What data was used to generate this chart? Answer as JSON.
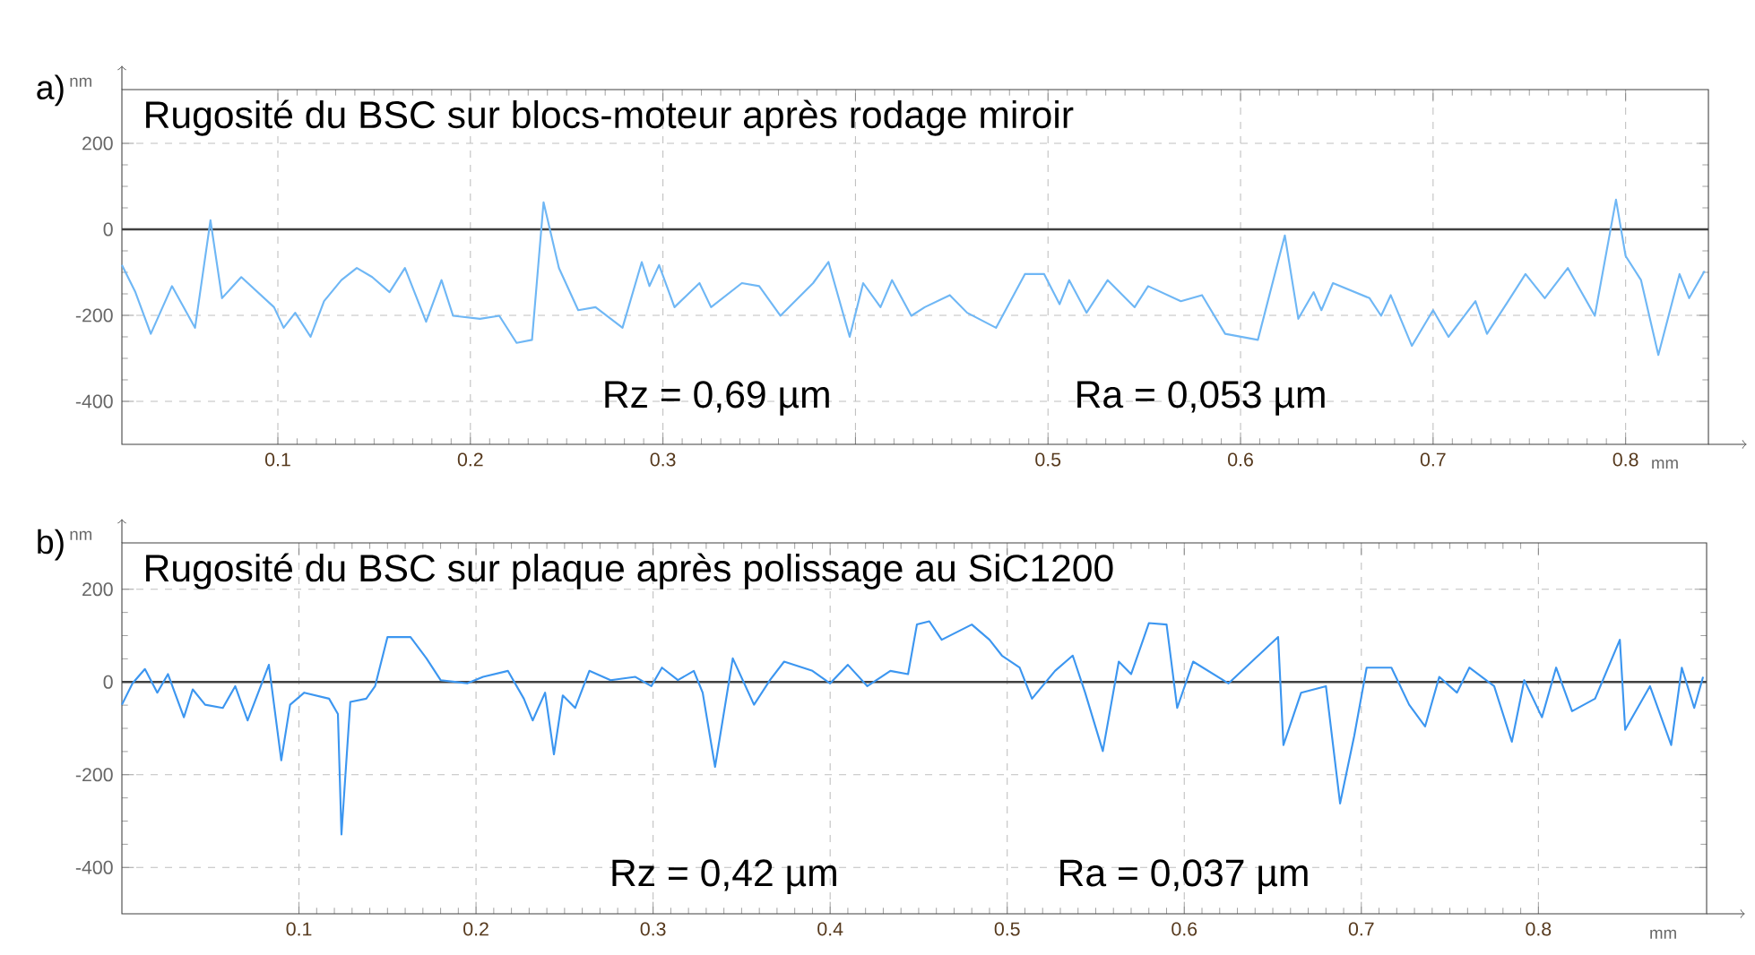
{
  "chart_data": [
    {
      "type": "line",
      "title": "Rugosité du BSC sur blocs-moteur après rodage miroir",
      "xlabel": "mm",
      "ylabel": "nm",
      "annotations": [
        "a)",
        "Rz = 0,69 µm",
        "Ra = 0,053 µm"
      ],
      "x": [
        0.019,
        0.026,
        0.034,
        0.045,
        0.057,
        0.065,
        0.071,
        0.081,
        0.098,
        0.103,
        0.109,
        0.117,
        0.124,
        0.133,
        0.141,
        0.149,
        0.158,
        0.166,
        0.177,
        0.185,
        0.191,
        0.205,
        0.215,
        0.224,
        0.232,
        0.238,
        0.246,
        0.256,
        0.265,
        0.279,
        0.289,
        0.293,
        0.298,
        0.306,
        0.319,
        0.325,
        0.341,
        0.35,
        0.361,
        0.378,
        0.386,
        0.397,
        0.404,
        0.413,
        0.419,
        0.429,
        0.436,
        0.449,
        0.458,
        0.473,
        0.488,
        0.498,
        0.506,
        0.511,
        0.52,
        0.531,
        0.545,
        0.552,
        0.569,
        0.58,
        0.592,
        0.609,
        0.623,
        0.63,
        0.638,
        0.642,
        0.648,
        0.667,
        0.673,
        0.678,
        0.689,
        0.7,
        0.708,
        0.722,
        0.728,
        0.739,
        0.748,
        0.758,
        0.77,
        0.784,
        0.795,
        0.8,
        0.808,
        0.817,
        0.828,
        0.833,
        0.841
      ],
      "values": [
        -83,
        -146,
        -243,
        -132,
        -229,
        21,
        -160,
        -111,
        -181,
        -229,
        -194,
        -250,
        -167,
        -118,
        -90,
        -111,
        -146,
        -90,
        -215,
        -118,
        -201,
        -208,
        -201,
        -264,
        -257,
        63,
        -90,
        -188,
        -181,
        -229,
        -76,
        -132,
        -83,
        -181,
        -125,
        -181,
        -125,
        -132,
        -201,
        -125,
        -76,
        -250,
        -125,
        -181,
        -118,
        -201,
        -181,
        -153,
        -194,
        -229,
        -104,
        -104,
        -174,
        -118,
        -194,
        -118,
        -181,
        -132,
        -167,
        -153,
        -243,
        -257,
        -14,
        -208,
        -146,
        -188,
        -125,
        -160,
        -201,
        -153,
        -271,
        -188,
        -250,
        -167,
        -243,
        -167,
        -104,
        -160,
        -90,
        -201,
        69,
        -62,
        -118,
        -292,
        -104,
        -160,
        -97
      ],
      "color": "#6fb7f5",
      "xlim": [
        0.019,
        0.843
      ],
      "ylim": [
        -500,
        325
      ],
      "xticks": [
        0.1,
        0.2,
        0.3,
        {
          "value": 0.4,
          "label": null
        },
        0.5,
        0.6,
        0.7,
        0.8
      ],
      "yticks": [
        -400,
        -200,
        0,
        200
      ],
      "grid": true,
      "ref_lines": [
        {
          "axis": "y",
          "value": 0,
          "color": "#404040"
        }
      ]
    },
    {
      "type": "line",
      "title": "Rugosité du BSC sur plaque après polissage au SiC1200",
      "xlabel": "mm",
      "ylabel": "nm",
      "annotations": [
        "b)",
        "Rz = 0,42 µm",
        "Ra = 0,037 µm"
      ],
      "x": [
        0.0,
        0.006,
        0.013,
        0.02,
        0.026,
        0.035,
        0.04,
        0.047,
        0.057,
        0.064,
        0.071,
        0.083,
        0.09,
        0.095,
        0.103,
        0.117,
        0.122,
        0.124,
        0.129,
        0.138,
        0.143,
        0.15,
        0.163,
        0.172,
        0.18,
        0.195,
        0.204,
        0.218,
        0.227,
        0.232,
        0.239,
        0.244,
        0.249,
        0.256,
        0.264,
        0.276,
        0.29,
        0.299,
        0.305,
        0.314,
        0.323,
        0.328,
        0.335,
        0.345,
        0.357,
        0.366,
        0.374,
        0.39,
        0.4,
        0.41,
        0.421,
        0.434,
        0.444,
        0.449,
        0.456,
        0.463,
        0.48,
        0.49,
        0.497,
        0.507,
        0.514,
        0.527,
        0.537,
        0.544,
        0.554,
        0.563,
        0.57,
        0.58,
        0.59,
        0.596,
        0.605,
        0.625,
        0.653,
        0.656,
        0.666,
        0.68,
        0.688,
        0.696,
        0.703,
        0.717,
        0.727,
        0.736,
        0.744,
        0.754,
        0.761,
        0.775,
        0.785,
        0.792,
        0.802,
        0.81,
        0.819,
        0.832,
        0.846,
        0.849,
        0.863,
        0.875,
        0.881,
        0.888,
        0.893
      ],
      "values": [
        -49,
        -3,
        28,
        -23,
        17,
        -76,
        -16,
        -49,
        -56,
        -9,
        -83,
        37,
        -169,
        -49,
        -23,
        -36,
        -69,
        -329,
        -43,
        -36,
        -9,
        97,
        97,
        51,
        4,
        -3,
        11,
        24,
        -36,
        -83,
        -23,
        -156,
        -29,
        -56,
        24,
        4,
        11,
        -9,
        31,
        4,
        24,
        -23,
        -183,
        51,
        -49,
        4,
        44,
        24,
        -3,
        37,
        -9,
        24,
        17,
        124,
        131,
        91,
        124,
        91,
        57,
        31,
        -36,
        24,
        57,
        -23,
        -149,
        44,
        17,
        127,
        124,
        -56,
        44,
        -3,
        97,
        -136,
        -23,
        -9,
        -262,
        -116,
        31,
        31,
        -49,
        -96,
        11,
        -23,
        31,
        -9,
        -129,
        4,
        -76,
        31,
        -63,
        -36,
        91,
        -103,
        -9,
        -136,
        31,
        -56,
        11
      ],
      "color": "#3c96f0",
      "xlim": [
        0,
        0.895
      ],
      "ylim": [
        -500,
        300
      ],
      "xticks": [
        0.1,
        0.2,
        0.3,
        0.4,
        0.5,
        0.6,
        0.7,
        0.8
      ],
      "yticks": [
        -400,
        -200,
        0,
        200
      ],
      "grid": true,
      "ref_lines": [
        {
          "axis": "y",
          "value": 0,
          "color": "#404040"
        }
      ]
    }
  ]
}
